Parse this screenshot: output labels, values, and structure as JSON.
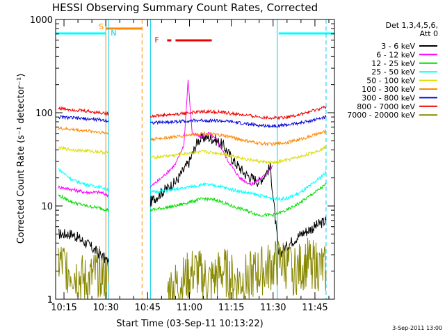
{
  "chart_data": {
    "type": "line",
    "title": "HESSI Observing Summary Count Rates, Corrected",
    "xlabel": "Start Time (03-Sep-11 10:13:22)",
    "ylabel": "Corrected Count Rate (s⁻¹ detector⁻¹)",
    "xlim": [
      "10:12",
      "11:52"
    ],
    "ylim": [
      1,
      1000
    ],
    "y_scale": "log",
    "x_tick_labels": [
      "10:15",
      "10:30",
      "10:45",
      "11:00",
      "11:15",
      "11:30",
      "11:45"
    ],
    "y_tick_labels": [
      "1",
      "10",
      "100",
      "1000"
    ],
    "timestamp": "3-Sep-2011 13:00",
    "legend_header": [
      "Det 1,3,4,5,6,",
      "Att 0"
    ],
    "legend_position": "top-right outside",
    "series": [
      {
        "name": "3 - 6 keV",
        "color": "#000000",
        "x": [
          "10:13",
          "10:18",
          "10:23",
          "10:28",
          "10:31",
          "10:46",
          "10:50",
          "10:55",
          "11:00",
          "11:03",
          "11:06",
          "11:09",
          "11:12",
          "11:16",
          "11:20",
          "11:25",
          "11:29",
          "11:32",
          "11:36",
          "11:40",
          "11:45",
          "11:49"
        ],
        "y": [
          5,
          5,
          4,
          3,
          2.5,
          11,
          14,
          18,
          30,
          50,
          55,
          52,
          45,
          30,
          22,
          18,
          26,
          3,
          4,
          5,
          6,
          7
        ]
      },
      {
        "name": "6 - 12 keV",
        "color": "#ff00ff",
        "x": [
          "10:13",
          "10:18",
          "10:23",
          "10:28",
          "10:31",
          "10:46",
          "10:50",
          "10:55",
          "10:58",
          "10:59.5",
          "11:01",
          "11:04",
          "11:07",
          "11:10",
          "11:14",
          "11:18",
          "11:22",
          "11:26",
          "11:30"
        ],
        "y": [
          16,
          15,
          14,
          14,
          13,
          16,
          20,
          28,
          45,
          220,
          60,
          55,
          60,
          50,
          30,
          20,
          17,
          20,
          27
        ]
      },
      {
        "name": "12 - 25 keV",
        "color": "#00dd00",
        "x": [
          "10:13",
          "10:18",
          "10:23",
          "10:28",
          "10:31",
          "10:46",
          "10:55",
          "11:00",
          "11:05",
          "11:10",
          "11:15",
          "11:20",
          "11:25",
          "11:30",
          "11:35",
          "11:40",
          "11:45",
          "11:49"
        ],
        "y": [
          13,
          11,
          10,
          9.5,
          9,
          9,
          10,
          11,
          12,
          11.5,
          10,
          9,
          8,
          8,
          9,
          11,
          14,
          17
        ]
      },
      {
        "name": "25 - 50 keV",
        "color": "#00ffff",
        "x": [
          "10:13",
          "10:18",
          "10:23",
          "10:28",
          "10:31",
          "10:46",
          "10:55",
          "11:00",
          "11:05",
          "11:10",
          "11:15",
          "11:20",
          "11:25",
          "11:30",
          "11:35",
          "11:40",
          "11:45",
          "11:49"
        ],
        "y": [
          25,
          19,
          17,
          16,
          15,
          14,
          15,
          16,
          17,
          16.5,
          15,
          14,
          13,
          12,
          12,
          14,
          18,
          23
        ]
      },
      {
        "name": "50 - 100 keV",
        "color": "#dddd00",
        "x": [
          "10:13",
          "10:18",
          "10:23",
          "10:28",
          "10:31",
          "10:46",
          "10:55",
          "11:00",
          "11:05",
          "11:10",
          "11:15",
          "11:20",
          "11:25",
          "11:30",
          "11:35",
          "11:40",
          "11:45",
          "11:49"
        ],
        "y": [
          42,
          40,
          39,
          38,
          37,
          33,
          35,
          37,
          38,
          37,
          35,
          32,
          30,
          29,
          31,
          34,
          38,
          43
        ]
      },
      {
        "name": "100 - 300 keV",
        "color": "#ff8800",
        "x": [
          "10:13",
          "10:18",
          "10:23",
          "10:28",
          "10:31",
          "10:46",
          "10:55",
          "11:00",
          "11:05",
          "11:10",
          "11:15",
          "11:20",
          "11:25",
          "11:30",
          "11:35",
          "11:40",
          "11:45",
          "11:49"
        ],
        "y": [
          68,
          66,
          64,
          62,
          60,
          52,
          55,
          58,
          60,
          58,
          55,
          50,
          47,
          46,
          48,
          52,
          58,
          63
        ]
      },
      {
        "name": "300 - 800 keV",
        "color": "#0000dd",
        "x": [
          "10:13",
          "10:18",
          "10:23",
          "10:28",
          "10:31",
          "10:46",
          "10:55",
          "11:00",
          "11:05",
          "11:10",
          "11:15",
          "11:20",
          "11:25",
          "11:30",
          "11:35",
          "11:40",
          "11:45",
          "11:49"
        ],
        "y": [
          90,
          88,
          86,
          84,
          82,
          78,
          80,
          82,
          83,
          82,
          80,
          76,
          73,
          72,
          74,
          78,
          84,
          90
        ]
      },
      {
        "name": "800 - 7000 keV",
        "color": "#ee0000",
        "x": [
          "10:13",
          "10:18",
          "10:23",
          "10:28",
          "10:31",
          "10:46",
          "10:55",
          "11:00",
          "11:05",
          "11:10",
          "11:15",
          "11:20",
          "11:25",
          "11:30",
          "11:35",
          "11:40",
          "11:45",
          "11:49"
        ],
        "y": [
          112,
          108,
          104,
          100,
          98,
          92,
          96,
          100,
          103,
          102,
          98,
          94,
          90,
          88,
          90,
          96,
          106,
          116
        ]
      },
      {
        "name": "7000 - 20000 keV",
        "color": "#888800",
        "x": [
          "10:13",
          "10:18",
          "10:23",
          "10:28",
          "10:31",
          "10:52",
          "10:57",
          "11:02",
          "11:07",
          "11:12",
          "11:17",
          "11:33",
          "11:38",
          "11:43",
          "11:49"
        ],
        "y": [
          2.5,
          2,
          1.5,
          2,
          1.5,
          1.2,
          1.5,
          2,
          1.5,
          2,
          1.5,
          2.5,
          2,
          2.5,
          2
        ]
      }
    ],
    "annotations": [
      {
        "text": "S",
        "color": "#ff8800",
        "x": "10:30"
      },
      {
        "text": "N",
        "color": "#00ccee",
        "x": "10:31"
      },
      {
        "text": "F",
        "color": "#ee0000",
        "x": "10:54"
      }
    ]
  }
}
